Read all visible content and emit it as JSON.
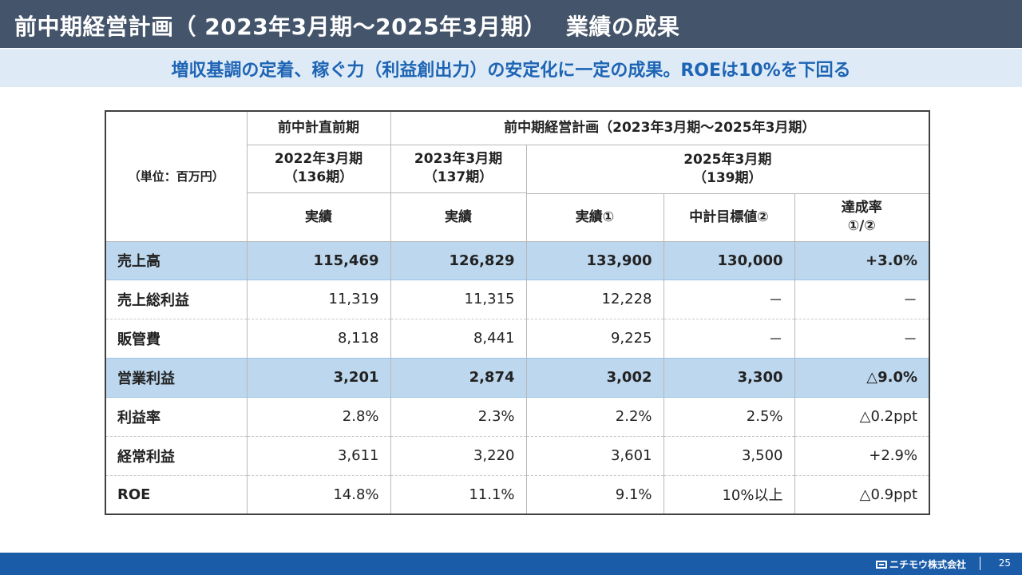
{
  "header": {
    "title": "前中期経営計画（ 2023年3月期～2025年3月期）　 業績の成果",
    "subtitle": "増収基調の定着、稼ぐ力（利益創出力）の安定化に一定の成果。ROEは10%を下回る"
  },
  "table": {
    "unit": "（単位：百万円）",
    "group_prev": "前中計直前期",
    "group_plan": "前中期経営計画（2023年3月期～2025年3月期）",
    "periods": {
      "p2022": "2022年3月期\n（136期）",
      "p2023": "2023年3月期\n（137期）",
      "p2025": "2025年3月期\n（139期）"
    },
    "columns": {
      "actual_2022": "実績",
      "actual_2023": "実績",
      "actual_2025": "実績①",
      "target_2025": "中計目標値②",
      "achievement": "達成率\n①/②"
    },
    "rows": [
      {
        "label": "売上高",
        "v2022": "115,469",
        "v2023": "126,829",
        "v2025": "133,900",
        "target": "130,000",
        "rate": "+3.0%",
        "highlight": true
      },
      {
        "label": "売上総利益",
        "v2022": "11,319",
        "v2023": "11,315",
        "v2025": "12,228",
        "target": "－",
        "rate": "－",
        "highlight": false
      },
      {
        "label": "販管費",
        "v2022": "8,118",
        "v2023": "8,441",
        "v2025": "9,225",
        "target": "－",
        "rate": "－",
        "highlight": false
      },
      {
        "label": "営業利益",
        "v2022": "3,201",
        "v2023": "2,874",
        "v2025": "3,002",
        "target": "3,300",
        "rate": "△9.0%",
        "highlight": true
      },
      {
        "label": "利益率",
        "v2022": "2.8%",
        "v2023": "2.3%",
        "v2025": "2.2%",
        "target": "2.5%",
        "rate": "△0.2ppt",
        "highlight": false
      },
      {
        "label": "経常利益",
        "v2022": "3,611",
        "v2023": "3,220",
        "v2025": "3,601",
        "target": "3,500",
        "rate": "+2.9%",
        "highlight": false
      },
      {
        "label": "ROE",
        "v2022": "14.8%",
        "v2023": "11.1%",
        "v2025": "9.1%",
        "target": "10%以上",
        "rate": "△0.9ppt",
        "highlight": false
      }
    ]
  },
  "footer": {
    "company": "ニチモウ株式会社",
    "page": "25"
  },
  "colors": {
    "title_bg": "#44546a",
    "subtitle_bg": "#deebf7",
    "subtitle_text": "#1e64b4",
    "highlight_row": "#bdd7ee",
    "footer_bg": "#1a5ca8"
  }
}
